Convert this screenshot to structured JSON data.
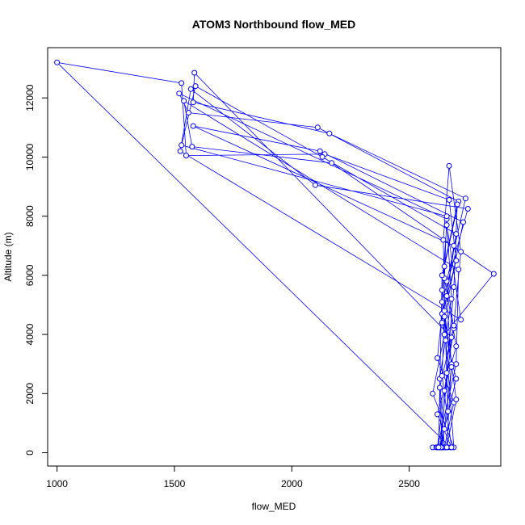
{
  "chart_data": {
    "type": "line",
    "title": "ATOM3 Northbound flow_MED",
    "xlabel": "flow_MED",
    "ylabel": "Altitude (m)",
    "xlim": [
      960,
      2890
    ],
    "ylim": [
      -450,
      13700
    ],
    "xticks": [
      1000,
      1500,
      2000,
      2500
    ],
    "yticks": [
      0,
      2000,
      4000,
      6000,
      8000,
      10000,
      12000
    ],
    "color": "#0000ff",
    "markers": "open-circle",
    "grid": false,
    "legend": "none",
    "series": [
      {
        "x": [
          2600,
          2615,
          2628,
          2640,
          2652,
          2664,
          2676,
          1000,
          1530,
          1550,
          2140,
          2670,
          2700,
          2640,
          2620,
          2690,
          2650,
          2630,
          2680,
          2660,
          1520,
          1560,
          2110,
          2710,
          2650,
          2640,
          2700,
          2650,
          2630,
          2680,
          1585,
          1580,
          2160,
          2740,
          2660,
          2690,
          2650,
          2620,
          2700,
          2710,
          1540,
          1575,
          2170,
          2860,
          2650,
          2600,
          2690,
          2640,
          2660,
          2720,
          1525,
          1570,
          2100,
          2750,
          2640,
          2680,
          2660,
          2700,
          2650,
          2690,
          1580,
          2120,
          2730,
          2650,
          2640,
          2680,
          2620,
          2700,
          2650,
          2660,
          1530,
          1590,
          2130,
          2700,
          2660,
          2680,
          2640,
          2630,
          2690,
          2720,
          2670,
          2645,
          2655,
          2665,
          2635,
          2660,
          2690,
          2705,
          2640,
          2625
        ],
        "y": [
          180,
          180,
          180,
          180,
          180,
          180,
          180,
          13200,
          12500,
          10050,
          10100,
          8550,
          6500,
          4700,
          3200,
          1700,
          180,
          2500,
          5200,
          7900,
          12150,
          11500,
          11000,
          8500,
          6300,
          4400,
          2500,
          800,
          180,
          3900,
          12850,
          11850,
          10800,
          8600,
          5800,
          4200,
          2100,
          180,
          3000,
          6200,
          11900,
          10350,
          9800,
          6050,
          4000,
          2000,
          180,
          5500,
          7700,
          4500,
          10200,
          12300,
          9050,
          8250,
          5100,
          3000,
          180,
          1800,
          4800,
          7000,
          11050,
          10200,
          7800,
          4600,
          2600,
          180,
          1300,
          3600,
          5900,
          8000,
          10400,
          12400,
          10000,
          7400,
          5300,
          2900,
          180,
          2200,
          4300,
          6800,
          9700,
          7200,
          3800,
          1400,
          180,
          2700,
          5600,
          8400,
          6000,
          180
        ]
      }
    ]
  }
}
